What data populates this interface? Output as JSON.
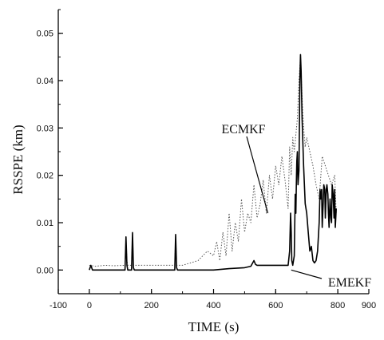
{
  "chart_data": {
    "type": "line",
    "title": "",
    "xlabel": "TIME (s)",
    "ylabel": "RSSPE (km)",
    "xlim": [
      -100,
      900
    ],
    "ylim": [
      -0.005,
      0.055
    ],
    "x_ticks": [
      -100,
      0,
      200,
      400,
      600,
      800,
      900
    ],
    "x_tick_labels": [
      "-100",
      "0",
      "200",
      "400",
      "600",
      "800",
      "900"
    ],
    "y_ticks": [
      0.0,
      0.01,
      0.02,
      0.03,
      0.04,
      0.05
    ],
    "y_tick_labels": [
      "0.00",
      "0.01",
      "0.02",
      "0.03",
      "0.04",
      "0.05"
    ],
    "grid": false,
    "annotations": [
      {
        "text": "ECMKF",
        "target_x": 575,
        "target_y": 0.012
      },
      {
        "text": "EMEKF",
        "target_x": 650,
        "target_y": 0.0
      }
    ],
    "series": [
      {
        "name": "ECMKF",
        "style": "dotted",
        "color": "#555555",
        "x": [
          0,
          20,
          50,
          80,
          115,
          118,
          121,
          124,
          130,
          136,
          139,
          142,
          150,
          200,
          250,
          275,
          278,
          281,
          284,
          300,
          350,
          380,
          400,
          410,
          420,
          430,
          440,
          450,
          460,
          470,
          480,
          490,
          500,
          510,
          520,
          530,
          540,
          550,
          560,
          570,
          580,
          590,
          600,
          610,
          620,
          630,
          640,
          645,
          650,
          655,
          660,
          670,
          675,
          680,
          683,
          686,
          690,
          695,
          700,
          710,
          720,
          730,
          740,
          750,
          760,
          770,
          780,
          790,
          795
        ],
        "y": [
          0.001,
          0.0008,
          0.001,
          0.0009,
          0.001,
          0.007,
          0.002,
          0.001,
          0.001,
          0.001,
          0.008,
          0.001,
          0.001,
          0.001,
          0.001,
          0.001,
          0.0075,
          0.001,
          0.001,
          0.001,
          0.002,
          0.004,
          0.003,
          0.006,
          0.002,
          0.008,
          0.003,
          0.012,
          0.004,
          0.01,
          0.006,
          0.015,
          0.008,
          0.012,
          0.01,
          0.018,
          0.011,
          0.014,
          0.019,
          0.012,
          0.02,
          0.015,
          0.022,
          0.018,
          0.024,
          0.019,
          0.013,
          0.026,
          0.02,
          0.028,
          0.025,
          0.032,
          0.04,
          0.045,
          0.04,
          0.035,
          0.03,
          0.026,
          0.028,
          0.025,
          0.022,
          0.018,
          0.015,
          0.024,
          0.022,
          0.02,
          0.018,
          0.02,
          0.012
        ]
      },
      {
        "name": "EMEKF",
        "style": "solid",
        "color": "#000000",
        "x": [
          0,
          5,
          10,
          20,
          50,
          80,
          115,
          118,
          121,
          124,
          130,
          136,
          139,
          142,
          145,
          200,
          250,
          275,
          278,
          281,
          284,
          300,
          350,
          400,
          450,
          500,
          520,
          530,
          535,
          540,
          560,
          600,
          640,
          645,
          648,
          650,
          652,
          655,
          660,
          663,
          665,
          667,
          668,
          670,
          672,
          675,
          678,
          680,
          682,
          685,
          690,
          695,
          700,
          705,
          710,
          715,
          720,
          725,
          730,
          735,
          740,
          743,
          745,
          748,
          750,
          753,
          755,
          758,
          760,
          763,
          765,
          768,
          770,
          772,
          775,
          778,
          780,
          782,
          785,
          788,
          790,
          792,
          795
        ],
        "y": [
          0.0,
          0.001,
          0.0,
          0.0,
          0.0,
          0.0,
          0.0,
          0.007,
          0.001,
          0.0,
          0.0,
          0.0,
          0.0079,
          0.0005,
          0.0,
          0.0,
          0.0,
          0.0,
          0.0075,
          0.0005,
          0.0,
          0.0,
          0.0,
          0.0,
          0.0003,
          0.0005,
          0.0008,
          0.002,
          0.0012,
          0.001,
          0.001,
          0.001,
          0.001,
          0.004,
          0.012,
          0.008,
          0.002,
          0.001,
          0.003,
          0.016,
          0.012,
          0.02,
          0.023,
          0.025,
          0.018,
          0.021,
          0.04,
          0.0455,
          0.042,
          0.032,
          0.022,
          0.014,
          0.012,
          0.008,
          0.004,
          0.005,
          0.002,
          0.0015,
          0.002,
          0.004,
          0.01,
          0.017,
          0.015,
          0.017,
          0.009,
          0.014,
          0.018,
          0.017,
          0.011,
          0.017,
          0.018,
          0.016,
          0.012,
          0.009,
          0.015,
          0.011,
          0.01,
          0.018,
          0.016,
          0.011,
          0.017,
          0.009,
          0.013
        ]
      }
    ]
  }
}
